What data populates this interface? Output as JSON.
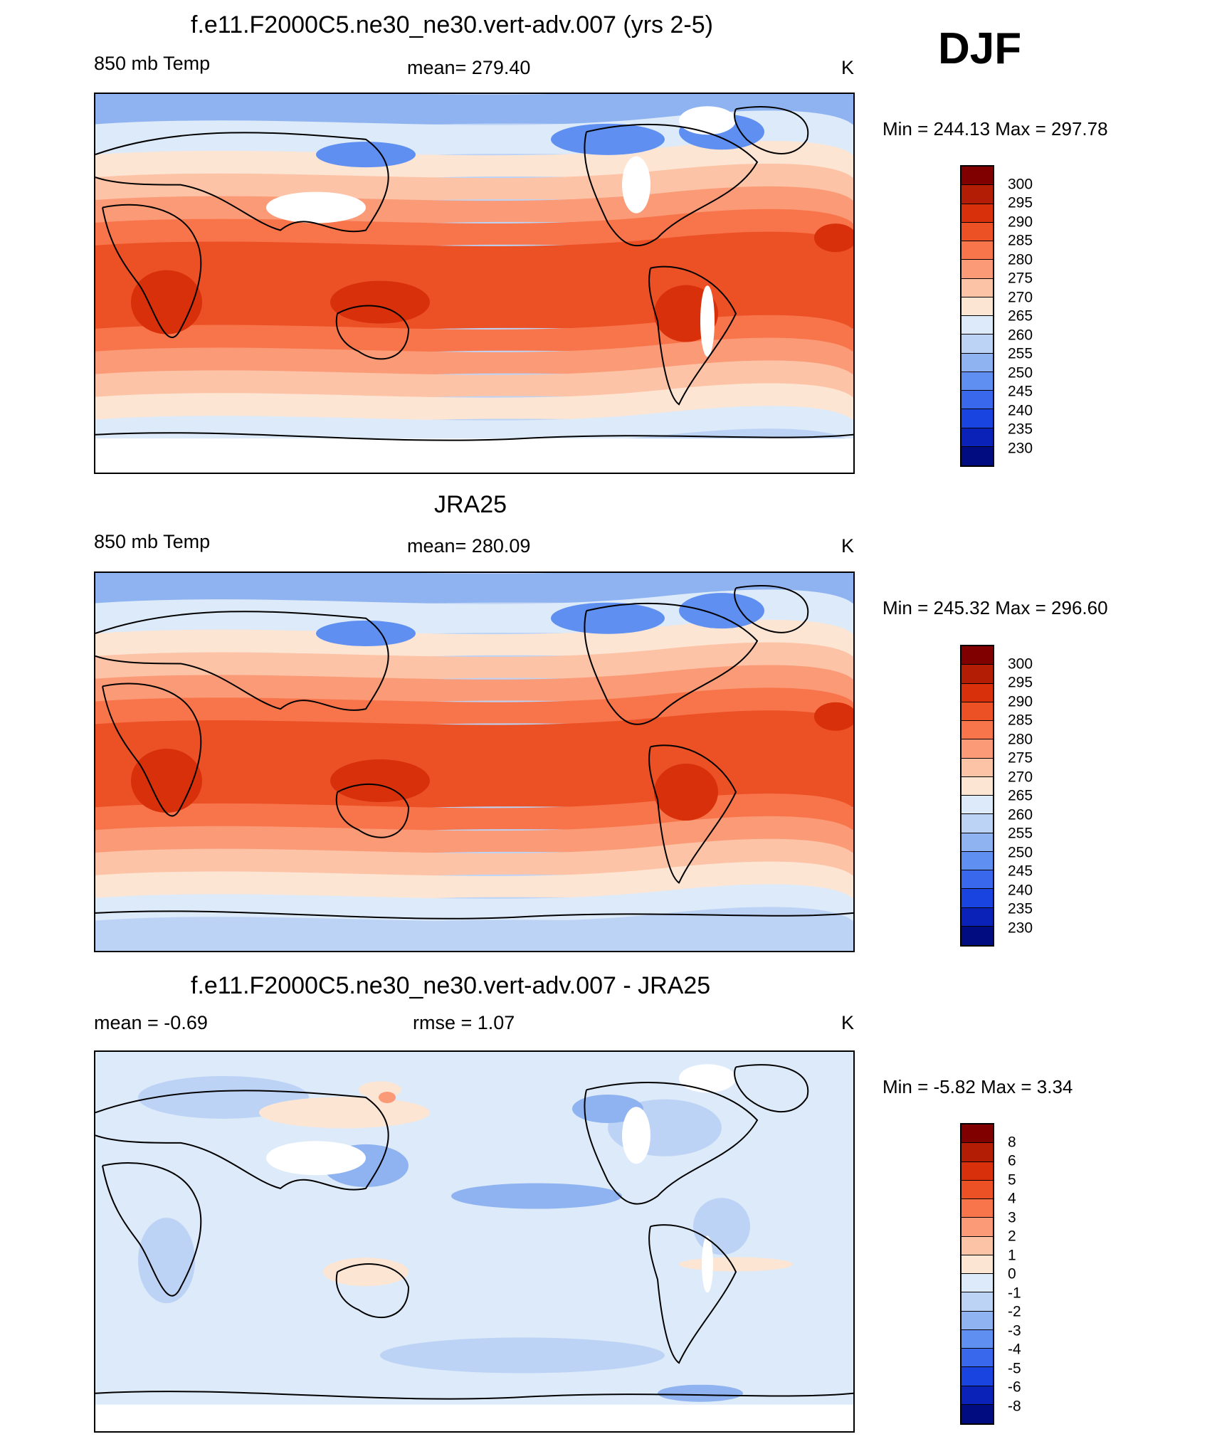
{
  "season": "DJF",
  "panels": [
    {
      "title": "f.e11.F2000C5.ne30_ne30.vert-adv.007 (yrs 2-5)",
      "left_label": "850 mb Temp",
      "center_label": "mean= 279.40",
      "unit": "K",
      "minmax": "Min = 244.13 Max = 297.78",
      "colorbar_labels": [
        "300",
        "295",
        "290",
        "285",
        "280",
        "275",
        "270",
        "265",
        "260",
        "255",
        "250",
        "245",
        "240",
        "235",
        "230"
      ]
    },
    {
      "title": "JRA25",
      "left_label": "850 mb Temp",
      "center_label": "mean= 280.09",
      "unit": "K",
      "minmax": "Min = 245.32 Max = 296.60",
      "colorbar_labels": [
        "300",
        "295",
        "290",
        "285",
        "280",
        "275",
        "270",
        "265",
        "260",
        "255",
        "250",
        "245",
        "240",
        "235",
        "230"
      ]
    },
    {
      "title": "f.e11.F2000C5.ne30_ne30.vert-adv.007 - JRA25",
      "left_label": "mean =  -0.69",
      "center_label": "rmse =   1.07",
      "unit": "K",
      "minmax": "Min =  -5.82 Max =   3.34",
      "colorbar_labels": [
        "8",
        "6",
        "5",
        "4",
        "3",
        "2",
        "1",
        "0",
        "-1",
        "-2",
        "-3",
        "-4",
        "-5",
        "-6",
        "-8"
      ]
    }
  ],
  "colorbar_colors": [
    "#800000",
    "#b41d05",
    "#d7300a",
    "#ec5025",
    "#f8754c",
    "#fb9a76",
    "#fdc3a6",
    "#fde5d4",
    "#dceaf9",
    "#bdd3f5",
    "#8fb3f0",
    "#5f8ff0",
    "#3a68ec",
    "#1a44df",
    "#0a22b8",
    "#000c80"
  ]
}
